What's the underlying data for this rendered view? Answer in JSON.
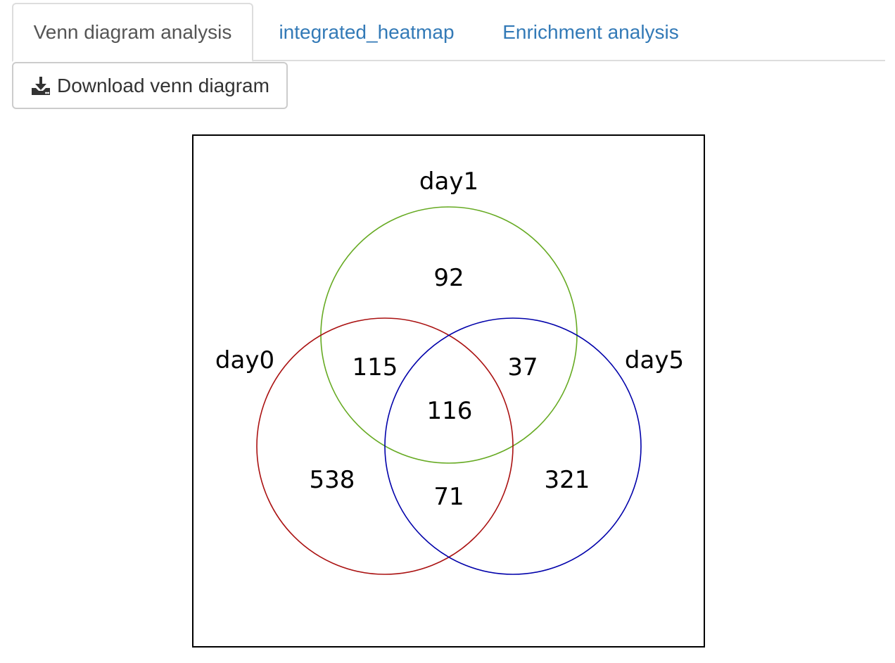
{
  "tabs": [
    {
      "label": "Venn diagram analysis",
      "active": true
    },
    {
      "label": "integrated_heatmap",
      "active": false
    },
    {
      "label": "Enrichment analysis",
      "active": false
    }
  ],
  "download_button": {
    "label": "Download venn diagram",
    "icon": "download-icon"
  },
  "venn": {
    "sets": [
      {
        "name": "day1",
        "color": "#66aa22"
      },
      {
        "name": "day0",
        "color": "#aa1111"
      },
      {
        "name": "day5",
        "color": "#0000aa"
      }
    ],
    "regions": {
      "day1_only": "92",
      "day0_day1": "115",
      "day1_day5": "37",
      "all_three": "116",
      "day0_only": "538",
      "day0_day5": "71",
      "day5_only": "321"
    }
  },
  "colors": {
    "tab_link": "#337ab7",
    "tab_active_text": "#555555",
    "border": "#dddddd"
  }
}
